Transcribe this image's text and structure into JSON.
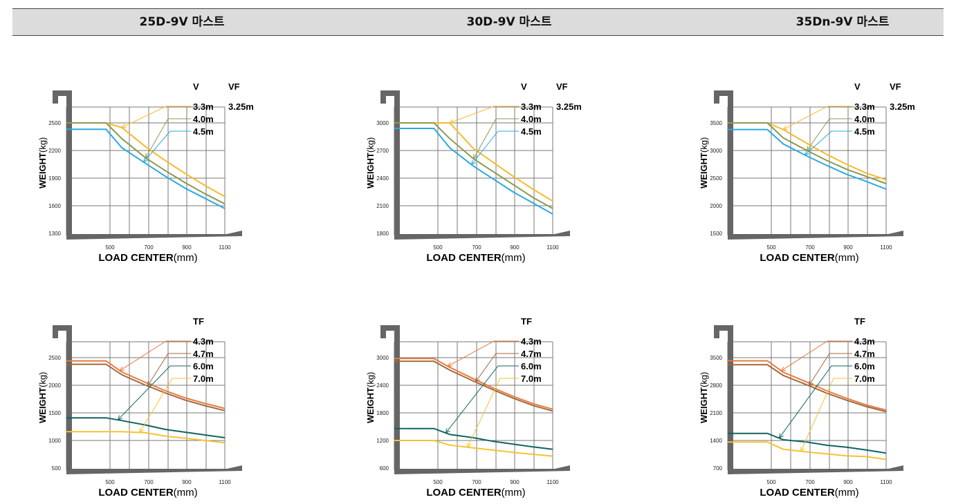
{
  "header": {
    "columns": [
      "25D-9V 마스트",
      "30D-9V 마스트",
      "35Dn-9V 마스트"
    ]
  },
  "colors": {
    "y33": "#f9b92a",
    "g40": "#8a9a4f",
    "b45": "#2aa9e0",
    "o43": "#e87a3c",
    "br47": "#a0683e",
    "t60": "#0e6460",
    "y70": "#f5c230"
  },
  "chart_data": [
    {
      "type": "line",
      "row": 0,
      "col": 0,
      "ylabel_bold": "WEIGHT",
      "ylabel_unit": "(kg)",
      "xlabel_bold": "LOAD CENTER",
      "xlabel_unit": "(mm)",
      "x_ticks": [
        "500",
        "700",
        "900",
        "1100"
      ],
      "y_ticks": [
        "2500",
        "2200",
        "1900",
        "1600",
        "1300"
      ],
      "ylim": [
        1300,
        2800
      ],
      "xlim": [
        300,
        1100
      ],
      "legend_headers": [
        "V",
        "VF"
      ],
      "series": [
        {
          "name": "3.3m",
          "name2": "3.25m",
          "color_key": "y33",
          "x": [
            300,
            500,
            580,
            700,
            800,
            900,
            1000,
            1100
          ],
          "y": [
            2500,
            2500,
            2450,
            2240,
            2090,
            1950,
            1820,
            1700
          ]
        },
        {
          "name": "4.0m",
          "color_key": "g40",
          "x": [
            300,
            500,
            580,
            700,
            800,
            900,
            1000,
            1100
          ],
          "y": [
            2500,
            2500,
            2330,
            2120,
            1980,
            1850,
            1730,
            1620
          ]
        },
        {
          "name": "4.5m",
          "color_key": "b45",
          "x": [
            300,
            500,
            580,
            700,
            800,
            900,
            1000,
            1100
          ],
          "y": [
            2430,
            2430,
            2230,
            2060,
            1920,
            1790,
            1680,
            1570
          ]
        }
      ]
    },
    {
      "type": "line",
      "row": 0,
      "col": 1,
      "ylabel_bold": "WEIGHT",
      "ylabel_unit": "(kg)",
      "xlabel_bold": "LOAD CENTER",
      "xlabel_unit": "(mm)",
      "x_ticks": [
        "500",
        "700",
        "900",
        "1100"
      ],
      "y_ticks": [
        "3000",
        "2700",
        "2400",
        "2100",
        "1800"
      ],
      "ylim": [
        1800,
        3300
      ],
      "xlim": [
        300,
        1100
      ],
      "legend_headers": [
        "V",
        "VF"
      ],
      "series": [
        {
          "name": "3.3m",
          "name2": "3.25m",
          "color_key": "y33",
          "x": [
            300,
            500,
            580,
            700,
            800,
            900,
            1000,
            1100
          ],
          "y": [
            3000,
            3000,
            3000,
            2720,
            2570,
            2420,
            2280,
            2150
          ]
        },
        {
          "name": "4.0m",
          "color_key": "g40",
          "x": [
            300,
            500,
            580,
            700,
            800,
            900,
            1000,
            1100
          ],
          "y": [
            3000,
            3000,
            2830,
            2610,
            2470,
            2330,
            2190,
            2070
          ]
        },
        {
          "name": "4.5m",
          "color_key": "b45",
          "x": [
            300,
            500,
            580,
            700,
            800,
            900,
            1000,
            1100
          ],
          "y": [
            2940,
            2940,
            2730,
            2530,
            2390,
            2250,
            2130,
            2010
          ]
        }
      ]
    },
    {
      "type": "line",
      "row": 0,
      "col": 2,
      "ylabel_bold": "WEIGHT",
      "ylabel_unit": "(kg)",
      "xlabel_bold": "LOAD CENTER",
      "xlabel_unit": "(mm)",
      "x_ticks": [
        "500",
        "700",
        "900",
        "1100"
      ],
      "y_ticks": [
        "3500",
        "3000",
        "2500",
        "2000",
        "1500"
      ],
      "ylim": [
        1500,
        4000
      ],
      "xlim": [
        300,
        1100
      ],
      "legend_headers": [
        "V",
        "VF"
      ],
      "series": [
        {
          "name": "3.3m",
          "name2": "3.25m",
          "color_key": "y33",
          "x": [
            300,
            500,
            580,
            700,
            800,
            900,
            1000,
            1100
          ],
          "y": [
            3500,
            3500,
            3380,
            3130,
            2930,
            2750,
            2590,
            2470
          ]
        },
        {
          "name": "4.0m",
          "color_key": "g40",
          "x": [
            300,
            500,
            580,
            700,
            800,
            900,
            1000,
            1100
          ],
          "y": [
            3500,
            3500,
            3230,
            3000,
            2820,
            2660,
            2530,
            2400
          ]
        },
        {
          "name": "4.5m",
          "color_key": "b45",
          "x": [
            300,
            500,
            580,
            700,
            800,
            900,
            1000,
            1100
          ],
          "y": [
            3380,
            3380,
            3120,
            2900,
            2730,
            2570,
            2440,
            2300
          ]
        }
      ]
    },
    {
      "type": "line",
      "row": 1,
      "col": 0,
      "ylabel_bold": "WEIGHT",
      "ylabel_unit": "(kg)",
      "xlabel_bold": "LOAD CENTER",
      "xlabel_unit": "(mm)",
      "x_ticks": [
        "500",
        "700",
        "900",
        "1100"
      ],
      "y_ticks": [
        "2500",
        "2000",
        "1500",
        "1000",
        "500"
      ],
      "ylim": [
        500,
        3000
      ],
      "xlim": [
        300,
        1100
      ],
      "legend_headers": [
        "TF"
      ],
      "series": [
        {
          "name": "4.3m",
          "color_key": "o43",
          "x": [
            300,
            500,
            580,
            700,
            800,
            900,
            1000,
            1100
          ],
          "y": [
            2440,
            2440,
            2240,
            2050,
            1900,
            1770,
            1670,
            1580
          ]
        },
        {
          "name": "4.7m",
          "color_key": "br47",
          "x": [
            300,
            500,
            580,
            700,
            800,
            900,
            1000,
            1100
          ],
          "y": [
            2380,
            2380,
            2190,
            2000,
            1860,
            1730,
            1630,
            1540
          ]
        },
        {
          "name": "6.0m",
          "color_key": "t60",
          "x": [
            300,
            500,
            580,
            700,
            800,
            900,
            1000,
            1100
          ],
          "y": [
            1410,
            1410,
            1360,
            1280,
            1200,
            1150,
            1100,
            1050
          ]
        },
        {
          "name": "7.0m",
          "color_key": "y70",
          "x": [
            300,
            500,
            580,
            700,
            800,
            900,
            1000,
            1100
          ],
          "y": [
            1160,
            1160,
            1160,
            1140,
            1080,
            1040,
            1000,
            960
          ]
        }
      ]
    },
    {
      "type": "line",
      "row": 1,
      "col": 1,
      "ylabel_bold": "WEIGHT",
      "ylabel_unit": "(kg)",
      "xlabel_bold": "LOAD CENTER",
      "xlabel_unit": "(mm)",
      "x_ticks": [
        "500",
        "700",
        "900",
        "1100"
      ],
      "y_ticks": [
        "3000",
        "2400",
        "1800",
        "1200",
        "600"
      ],
      "ylim": [
        600,
        3600
      ],
      "xlim": [
        300,
        1100
      ],
      "legend_headers": [
        "TF"
      ],
      "series": [
        {
          "name": "4.3m",
          "color_key": "o43",
          "x": [
            300,
            500,
            580,
            700,
            800,
            900,
            1000,
            1100
          ],
          "y": [
            2980,
            2980,
            2790,
            2540,
            2340,
            2160,
            2000,
            1880
          ]
        },
        {
          "name": "4.7m",
          "color_key": "br47",
          "x": [
            300,
            500,
            580,
            700,
            800,
            900,
            1000,
            1100
          ],
          "y": [
            2920,
            2920,
            2730,
            2490,
            2300,
            2120,
            1960,
            1840
          ]
        },
        {
          "name": "6.0m",
          "color_key": "t60",
          "x": [
            300,
            500,
            580,
            700,
            800,
            900,
            1000,
            1100
          ],
          "y": [
            1460,
            1460,
            1330,
            1260,
            1180,
            1120,
            1060,
            1010
          ]
        },
        {
          "name": "7.0m",
          "color_key": "y70",
          "x": [
            300,
            500,
            580,
            700,
            800,
            900,
            1000,
            1100
          ],
          "y": [
            1200,
            1200,
            1100,
            1040,
            990,
            940,
            900,
            860
          ]
        }
      ]
    },
    {
      "type": "line",
      "row": 1,
      "col": 2,
      "ylabel_bold": "WEIGHT",
      "ylabel_unit": "(kg)",
      "xlabel_bold": "LOAD CENTER",
      "xlabel_unit": "(mm)",
      "x_ticks": [
        "500",
        "700",
        "900",
        "1100"
      ],
      "y_ticks": [
        "3500",
        "2800",
        "2100",
        "1400",
        "700"
      ],
      "ylim": [
        700,
        4200
      ],
      "xlim": [
        300,
        1100
      ],
      "legend_headers": [
        "TF"
      ],
      "series": [
        {
          "name": "4.3m",
          "color_key": "o43",
          "x": [
            300,
            500,
            580,
            700,
            800,
            900,
            1000,
            1100
          ],
          "y": [
            3420,
            3420,
            3130,
            2880,
            2660,
            2470,
            2300,
            2170
          ]
        },
        {
          "name": "4.7m",
          "color_key": "br47",
          "x": [
            300,
            500,
            580,
            700,
            800,
            900,
            1000,
            1100
          ],
          "y": [
            3320,
            3320,
            3050,
            2810,
            2600,
            2420,
            2260,
            2130
          ]
        },
        {
          "name": "6.0m",
          "color_key": "t60",
          "x": [
            300,
            500,
            580,
            700,
            800,
            900,
            1000,
            1100
          ],
          "y": [
            1580,
            1580,
            1420,
            1360,
            1280,
            1230,
            1160,
            1080
          ]
        },
        {
          "name": "7.0m",
          "color_key": "y70",
          "x": [
            300,
            500,
            580,
            700,
            800,
            900,
            1000,
            1100
          ],
          "y": [
            1360,
            1360,
            1180,
            1110,
            1060,
            1010,
            990,
            920
          ]
        }
      ]
    }
  ]
}
